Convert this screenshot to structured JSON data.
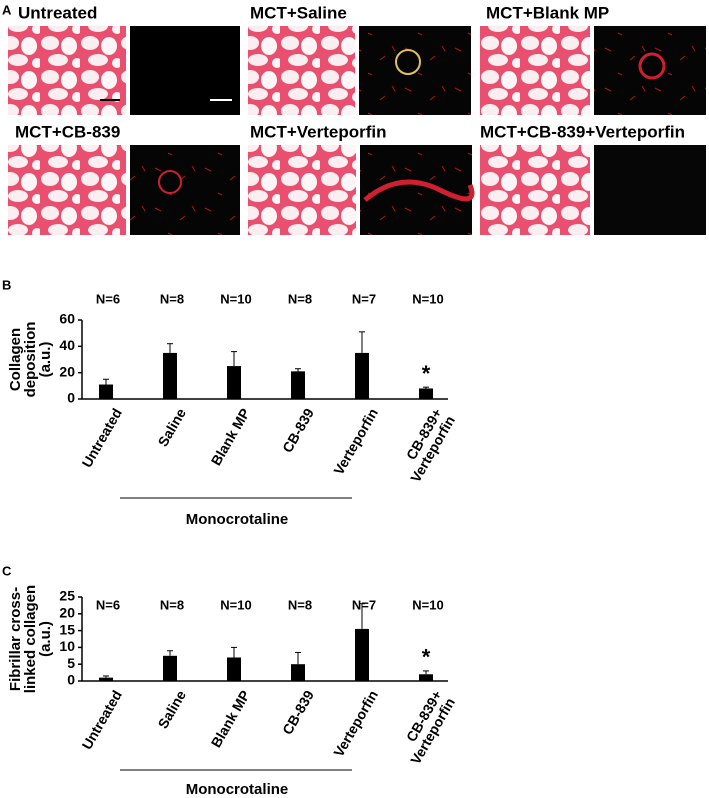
{
  "figure_a": {
    "label": "A",
    "panels": [
      {
        "title": "Untreated"
      },
      {
        "title": "MCT+Saline"
      },
      {
        "title": "MCT+Blank MP"
      },
      {
        "title": "MCT+CB-839"
      },
      {
        "title": "MCT+Verteporfin"
      },
      {
        "title": "MCT+CB-839+Verteporfin"
      }
    ]
  },
  "chart_data": [
    {
      "type": "bar",
      "panel_label": "B",
      "ylabel": [
        "Collagen",
        "deposition",
        "(a.u.)"
      ],
      "categories": [
        "Untreated",
        "Saline",
        "Blank MP",
        "CB-839",
        "Verteporfin",
        "CB-839+\nVerteporfin"
      ],
      "values": [
        11,
        35,
        25,
        21,
        35,
        8
      ],
      "errors": [
        4,
        7,
        11,
        2,
        16,
        1
      ],
      "annotations": [
        "N=6",
        "N=8",
        "N=10",
        "N=8",
        "N=7",
        "N=10"
      ],
      "value_annotations": [
        null,
        null,
        null,
        null,
        null,
        "*"
      ],
      "group_label": "Monocrotaline",
      "color": "#000000",
      "ylim": [
        0,
        60
      ],
      "yticks": [
        0,
        20,
        40,
        60
      ]
    },
    {
      "type": "bar",
      "panel_label": "C",
      "ylabel": [
        "Fibrillar cross-",
        "linked collagen",
        "(a.u.)"
      ],
      "categories": [
        "Untreated",
        "Saline",
        "Blank MP",
        "CB-839",
        "Verteporfin",
        "CB-839+\nVerteporfin"
      ],
      "values": [
        1,
        7.5,
        7,
        5,
        15.5,
        2
      ],
      "errors": [
        0.5,
        1.5,
        3,
        3.5,
        7.5,
        1
      ],
      "annotations": [
        "N=6",
        "N=8",
        "N=10",
        "N=8",
        "N=7",
        "N=10"
      ],
      "value_annotations": [
        null,
        null,
        null,
        null,
        null,
        "*"
      ],
      "group_label": "Monocrotaline",
      "color": "#000000",
      "ylim": [
        0,
        25
      ],
      "yticks": [
        0,
        5,
        10,
        15,
        20,
        25
      ]
    }
  ]
}
